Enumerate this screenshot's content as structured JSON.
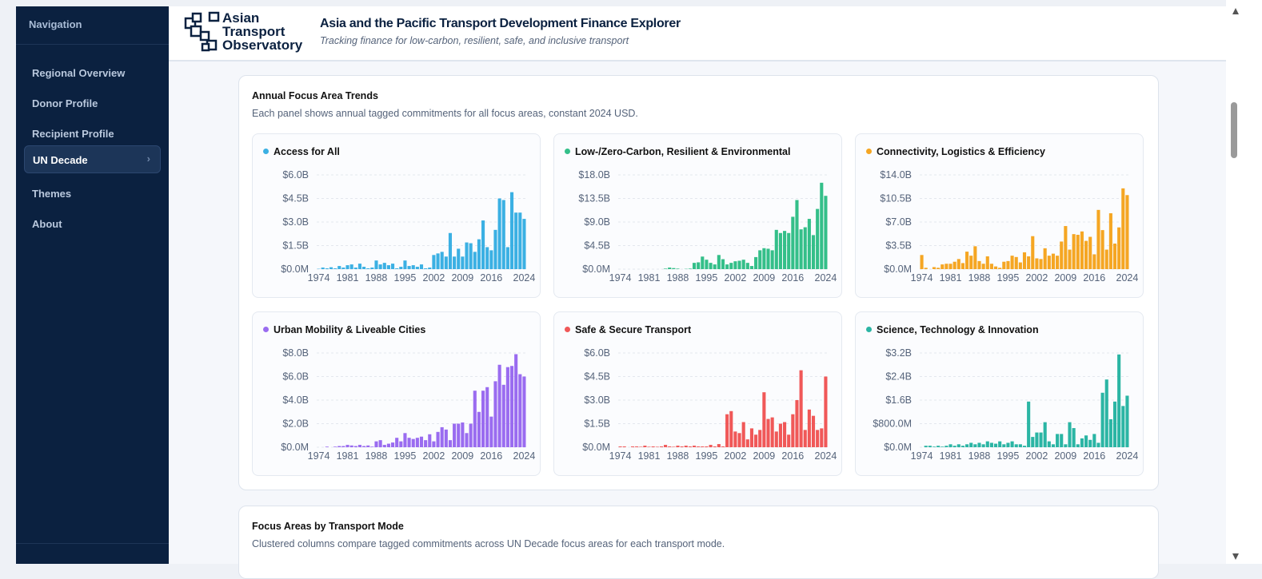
{
  "nav": {
    "title": "Navigation",
    "items": [
      "Regional Overview",
      "Donor Profile",
      "Recipient Profile",
      "UN Decade",
      "Themes",
      "About"
    ]
  },
  "header": {
    "logo": [
      "Asian",
      "Transport",
      "Observatory"
    ],
    "title": "Asia and the Pacific Transport Development Finance Explorer",
    "subtitle": "Tracking finance for low-carbon, resilient, safe, and inclusive transport"
  },
  "section1": {
    "title": "Annual Focus Area Trends",
    "subtitle": "Each panel shows annual tagged commitments for all focus areas, constant 2024 USD."
  },
  "section2": {
    "title": "Focus Areas by Transport Mode",
    "subtitle": "Clustered columns compare tagged commitments across UN Decade focus areas for each transport mode."
  },
  "chart_data": [
    {
      "type": "bar",
      "title": "Access for All",
      "color": "#3bb0e3",
      "categories": [
        1974,
        null,
        null,
        null,
        null,
        null,
        null,
        1981,
        null,
        null,
        null,
        null,
        null,
        null,
        1988,
        null,
        null,
        null,
        null,
        null,
        null,
        1995,
        null,
        null,
        null,
        null,
        null,
        null,
        2002,
        null,
        null,
        null,
        null,
        null,
        null,
        2009,
        null,
        null,
        null,
        null,
        null,
        null,
        2016,
        null,
        null,
        null,
        null,
        null,
        null,
        null,
        2024
      ],
      "values": [
        0.02,
        0.1,
        0.05,
        0.12,
        0.05,
        0.2,
        0.1,
        0.25,
        0.3,
        0.1,
        0.35,
        0.15,
        0.05,
        0.1,
        0.55,
        0.3,
        0.4,
        0.25,
        0.35,
        0.05,
        0.15,
        0.55,
        0.2,
        0.25,
        0.15,
        0.3,
        0.05,
        0.1,
        0.9,
        1.0,
        1.1,
        0.8,
        2.3,
        0.8,
        1.3,
        0.8,
        1.7,
        1.65,
        1.1,
        1.9,
        3.1,
        1.4,
        1.2,
        2.5,
        4.5,
        4.4,
        1.4,
        4.9,
        3.6,
        3.6,
        3.2
      ],
      "ylim": [
        0,
        6
      ],
      "yticks": [
        {
          "value": 0,
          "label": "$0.0M"
        },
        {
          "value": 1.5,
          "label": "$1.5B"
        },
        {
          "value": 3,
          "label": "$3.0B"
        },
        {
          "value": 4.5,
          "label": "$4.5B"
        },
        {
          "value": 6,
          "label": "$6.0B"
        }
      ],
      "grid": true
    },
    {
      "type": "bar",
      "title": "Low-/Zero-Carbon, Resilient & Environmental",
      "color": "#34bf89",
      "categories": [
        1974,
        null,
        null,
        null,
        null,
        null,
        null,
        1981,
        null,
        null,
        null,
        null,
        null,
        null,
        1988,
        null,
        null,
        null,
        null,
        null,
        null,
        1995,
        null,
        null,
        null,
        null,
        null,
        null,
        2002,
        null,
        null,
        null,
        null,
        null,
        null,
        2009,
        null,
        null,
        null,
        null,
        null,
        null,
        2016,
        null,
        null,
        null,
        null,
        null,
        null,
        null,
        2024
      ],
      "values": [
        0,
        0,
        0,
        0,
        0,
        0,
        0,
        0,
        0,
        0,
        0,
        0.1,
        0.3,
        0.2,
        0.1,
        0,
        0.05,
        0.1,
        1.2,
        1.3,
        2.4,
        1.8,
        1.2,
        0.9,
        2.7,
        1.9,
        0.9,
        1.2,
        1.5,
        1.6,
        1.8,
        1.2,
        0.6,
        2.3,
        3.6,
        4.0,
        3.9,
        3.6,
        7.5,
        6.9,
        7.3,
        6.9,
        10.0,
        13.2,
        7.6,
        8.0,
        9.6,
        6.5,
        11.5,
        16.5,
        14.0
      ],
      "ylim": [
        0,
        18
      ],
      "yticks": [
        {
          "value": 0,
          "label": "$0.0M"
        },
        {
          "value": 4.5,
          "label": "$4.5B"
        },
        {
          "value": 9,
          "label": "$9.0B"
        },
        {
          "value": 13.5,
          "label": "$13.5B"
        },
        {
          "value": 18,
          "label": "$18.0B"
        }
      ],
      "grid": true
    },
    {
      "type": "bar",
      "title": "Connectivity, Logistics & Efficiency",
      "color": "#f5a623",
      "categories": [
        1974,
        null,
        null,
        null,
        null,
        null,
        null,
        1981,
        null,
        null,
        null,
        null,
        null,
        null,
        1988,
        null,
        null,
        null,
        null,
        null,
        null,
        1995,
        null,
        null,
        null,
        null,
        null,
        null,
        2002,
        null,
        null,
        null,
        null,
        null,
        null,
        2009,
        null,
        null,
        null,
        null,
        null,
        null,
        2016,
        null,
        null,
        null,
        null,
        null,
        null,
        null,
        2024
      ],
      "values": [
        2.1,
        0.2,
        0,
        0.3,
        0.2,
        0.7,
        0.8,
        0.8,
        1.1,
        1.5,
        0.9,
        2.6,
        2.0,
        3.4,
        1.2,
        0.8,
        1.9,
        0.8,
        0.4,
        0.2,
        1.1,
        1.2,
        2.0,
        1.8,
        1.0,
        2.5,
        1.9,
        4.9,
        1.6,
        1.5,
        3.1,
        2.0,
        2.3,
        2.0,
        4.1,
        6.4,
        2.9,
        5.2,
        5.1,
        5.6,
        4.2,
        4.8,
        2.2,
        8.8,
        5.8,
        2.9,
        8.3,
        3.8,
        6.2,
        12.0,
        11.0
      ],
      "ylim": [
        0,
        14
      ],
      "yticks": [
        {
          "value": 0,
          "label": "$0.0M"
        },
        {
          "value": 3.5,
          "label": "$3.5B"
        },
        {
          "value": 7,
          "label": "$7.0B"
        },
        {
          "value": 10.5,
          "label": "$10.5B"
        },
        {
          "value": 14,
          "label": "$14.0B"
        }
      ],
      "grid": true
    },
    {
      "type": "bar",
      "title": "Urban Mobility & Liveable Cities",
      "color": "#9a6cf0",
      "categories": [
        1974,
        null,
        null,
        null,
        null,
        null,
        null,
        1981,
        null,
        null,
        null,
        null,
        null,
        null,
        1988,
        null,
        null,
        null,
        null,
        null,
        null,
        1995,
        null,
        null,
        null,
        null,
        null,
        null,
        2002,
        null,
        null,
        null,
        null,
        null,
        null,
        2009,
        null,
        null,
        null,
        null,
        null,
        null,
        2016,
        null,
        null,
        null,
        null,
        null,
        null,
        null,
        2024
      ],
      "values": [
        0,
        0,
        0.05,
        0,
        0.05,
        0.1,
        0.1,
        0.2,
        0.15,
        0.1,
        0.2,
        0.1,
        0.15,
        0.05,
        0.5,
        0.6,
        0.2,
        0.3,
        0.4,
        0.8,
        0.5,
        1.2,
        0.8,
        0.7,
        0.8,
        0.9,
        0.6,
        1.1,
        0.5,
        1.3,
        1.7,
        1.5,
        0.6,
        2.0,
        2.0,
        2.1,
        1.2,
        2.0,
        4.8,
        3.0,
        4.8,
        5.1,
        2.6,
        5.6,
        7.0,
        5.3,
        6.8,
        6.9,
        7.9,
        6.2,
        6.0
      ],
      "ylim": [
        0,
        8
      ],
      "yticks": [
        {
          "value": 0,
          "label": "$0.0M"
        },
        {
          "value": 2,
          "label": "$2.0B"
        },
        {
          "value": 4,
          "label": "$4.0B"
        },
        {
          "value": 6,
          "label": "$6.0B"
        },
        {
          "value": 8,
          "label": "$8.0B"
        }
      ],
      "grid": true
    },
    {
      "type": "bar",
      "title": "Safe & Secure Transport",
      "color": "#f05858",
      "categories": [
        1974,
        null,
        null,
        null,
        null,
        null,
        null,
        1981,
        null,
        null,
        null,
        null,
        null,
        null,
        1988,
        null,
        null,
        null,
        null,
        null,
        null,
        1995,
        null,
        null,
        null,
        null,
        null,
        null,
        2002,
        null,
        null,
        null,
        null,
        null,
        null,
        2009,
        null,
        null,
        null,
        null,
        null,
        null,
        2016,
        null,
        null,
        null,
        null,
        null,
        null,
        null,
        2024
      ],
      "values": [
        0.05,
        0.05,
        0,
        0.05,
        0.05,
        0.03,
        0.1,
        0.03,
        0.05,
        0.03,
        0.05,
        0.15,
        0.05,
        0.03,
        0.1,
        0.05,
        0.1,
        0.05,
        0.1,
        0.05,
        0.05,
        0.05,
        0.15,
        0.05,
        0.2,
        0.05,
        2.1,
        2.3,
        1.0,
        0.9,
        1.6,
        0.5,
        1.2,
        0.8,
        1.1,
        3.5,
        1.8,
        1.9,
        1.0,
        1.5,
        1.6,
        0.8,
        2.1,
        3.0,
        4.9,
        1.1,
        2.4,
        2.0,
        1.1,
        1.2,
        4.5
      ],
      "ylim": [
        0,
        6
      ],
      "yticks": [
        {
          "value": 0,
          "label": "$0.0M"
        },
        {
          "value": 1.5,
          "label": "$1.5B"
        },
        {
          "value": 3,
          "label": "$3.0B"
        },
        {
          "value": 4.5,
          "label": "$4.5B"
        },
        {
          "value": 6,
          "label": "$6.0B"
        }
      ],
      "grid": true
    },
    {
      "type": "bar",
      "title": "Science, Technology & Innovation",
      "color": "#2bb5a4",
      "categories": [
        1974,
        null,
        null,
        null,
        null,
        null,
        null,
        1981,
        null,
        null,
        null,
        null,
        null,
        null,
        1988,
        null,
        null,
        null,
        null,
        null,
        null,
        1995,
        null,
        null,
        null,
        null,
        null,
        null,
        2002,
        null,
        null,
        null,
        null,
        null,
        null,
        2009,
        null,
        null,
        null,
        null,
        null,
        null,
        2016,
        null,
        null,
        null,
        null,
        null,
        null,
        null,
        2024
      ],
      "values": [
        0,
        0.05,
        0.05,
        0.02,
        0.05,
        0.02,
        0.05,
        0.1,
        0.05,
        0.1,
        0.05,
        0.1,
        0.15,
        0.1,
        0.15,
        0.1,
        0.2,
        0.15,
        0.12,
        0.2,
        0.1,
        0.15,
        0.2,
        0.1,
        0.1,
        0.05,
        1.55,
        0.35,
        0.5,
        0.5,
        0.85,
        0.2,
        0.1,
        0.45,
        0.45,
        0.1,
        0.85,
        0.65,
        0.1,
        0.3,
        0.4,
        0.25,
        0.45,
        0.15,
        1.85,
        2.3,
        0.95,
        1.55,
        3.15,
        1.4,
        1.75
      ],
      "ylim": [
        0,
        3.2
      ],
      "yticks": [
        {
          "value": 0,
          "label": "$0.0M"
        },
        {
          "value": 0.8,
          "label": "$800.0M"
        },
        {
          "value": 1.6,
          "label": "$1.6B"
        },
        {
          "value": 2.4,
          "label": "$2.4B"
        },
        {
          "value": 3.2,
          "label": "$3.2B"
        }
      ],
      "grid": true
    }
  ]
}
